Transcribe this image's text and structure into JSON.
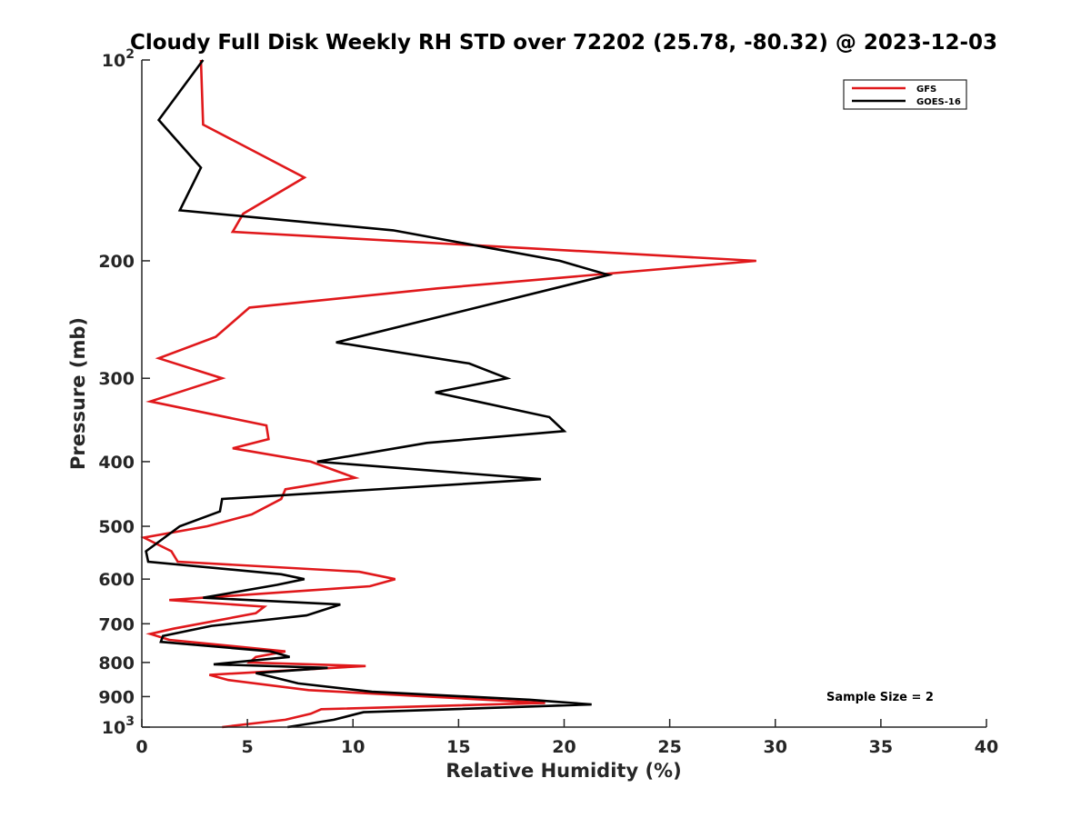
{
  "chart_data": {
    "type": "line",
    "title": "Cloudy Full Disk Weekly RH STD over 72202 (25.78, -80.32) @ 2023-12-03",
    "xlabel": "Relative Humidity (%)",
    "ylabel": "Pressure (mb)",
    "xlim": [
      0,
      40
    ],
    "ylim": [
      100,
      1000
    ],
    "y_scale": "log",
    "y_reversed": false,
    "grid": false,
    "legend_position": "top-right",
    "x_ticks": [
      0,
      5,
      10,
      15,
      20,
      25,
      30,
      35,
      40
    ],
    "x_tick_labels": [
      "0",
      "5",
      "10",
      "15",
      "20",
      "25",
      "30",
      "35",
      "40"
    ],
    "y_ticks": [
      100,
      200,
      300,
      400,
      500,
      600,
      700,
      800,
      900,
      1000
    ],
    "y_tick_labels": [
      {
        "base": "10",
        "exp": "2"
      },
      {
        "base": "200",
        "exp": ""
      },
      {
        "base": "300",
        "exp": ""
      },
      {
        "base": "400",
        "exp": ""
      },
      {
        "base": "500",
        "exp": ""
      },
      {
        "base": "600",
        "exp": ""
      },
      {
        "base": "700",
        "exp": ""
      },
      {
        "base": "800",
        "exp": ""
      },
      {
        "base": "900",
        "exp": ""
      },
      {
        "base": "10",
        "exp": "3"
      }
    ],
    "annotation": "Sample Size = 2",
    "series": [
      {
        "name": "GFS",
        "color": "#e0181b",
        "points": [
          [
            2.8,
            100
          ],
          [
            2.9,
            125
          ],
          [
            7.7,
            150
          ],
          [
            4.8,
            170
          ],
          [
            4.3,
            181
          ],
          [
            29.1,
            200
          ],
          [
            14.0,
            220
          ],
          [
            5.1,
            235
          ],
          [
            3.5,
            260
          ],
          [
            0.8,
            280
          ],
          [
            3.8,
            300
          ],
          [
            0.4,
            325
          ],
          [
            5.9,
            353
          ],
          [
            6.0,
            370
          ],
          [
            4.3,
            382
          ],
          [
            8.0,
            400
          ],
          [
            10.1,
            423
          ],
          [
            6.8,
            440
          ],
          [
            6.6,
            455
          ],
          [
            5.2,
            480
          ],
          [
            3.1,
            500
          ],
          [
            0.1,
            520
          ],
          [
            1.4,
            545
          ],
          [
            1.7,
            565
          ],
          [
            10.3,
            585
          ],
          [
            12.0,
            600
          ],
          [
            10.8,
            615
          ],
          [
            1.3,
            645
          ],
          [
            5.8,
            660
          ],
          [
            5.4,
            675
          ],
          [
            1.5,
            712
          ],
          [
            0.4,
            725
          ],
          [
            1.3,
            740
          ],
          [
            6.8,
            770
          ],
          [
            5.4,
            785
          ],
          [
            5.1,
            800
          ],
          [
            10.6,
            810
          ],
          [
            3.2,
            835
          ],
          [
            4.1,
            850
          ],
          [
            7.9,
            880
          ],
          [
            19.1,
            920
          ],
          [
            8.5,
            940
          ],
          [
            8.0,
            955
          ],
          [
            6.8,
            975
          ],
          [
            3.8,
            1000
          ]
        ]
      },
      {
        "name": "GOES-16",
        "color": "#000000",
        "points": [
          [
            2.9,
            100
          ],
          [
            0.8,
            123
          ],
          [
            2.8,
            145
          ],
          [
            1.8,
            168
          ],
          [
            11.9,
            180
          ],
          [
            19.8,
            200
          ],
          [
            22.1,
            210
          ],
          [
            9.2,
            265
          ],
          [
            15.5,
            285
          ],
          [
            17.3,
            300
          ],
          [
            13.9,
            315
          ],
          [
            19.3,
            343
          ],
          [
            20.0,
            360
          ],
          [
            13.5,
            375
          ],
          [
            8.3,
            400
          ],
          [
            18.9,
            425
          ],
          [
            3.8,
            455
          ],
          [
            3.7,
            475
          ],
          [
            1.8,
            500
          ],
          [
            0.2,
            545
          ],
          [
            0.3,
            565
          ],
          [
            6.6,
            590
          ],
          [
            7.7,
            600
          ],
          [
            6.4,
            612
          ],
          [
            2.9,
            640
          ],
          [
            9.4,
            655
          ],
          [
            7.8,
            680
          ],
          [
            3.3,
            705
          ],
          [
            1.0,
            730
          ],
          [
            0.9,
            745
          ],
          [
            6.1,
            770
          ],
          [
            7.0,
            785
          ],
          [
            3.4,
            805
          ],
          [
            8.8,
            815
          ],
          [
            5.4,
            830
          ],
          [
            6.1,
            840
          ],
          [
            7.4,
            860
          ],
          [
            10.9,
            885
          ],
          [
            18.4,
            910
          ],
          [
            21.3,
            925
          ],
          [
            10.5,
            950
          ],
          [
            10.2,
            955
          ],
          [
            9.1,
            975
          ],
          [
            6.9,
            1000
          ]
        ]
      }
    ]
  }
}
